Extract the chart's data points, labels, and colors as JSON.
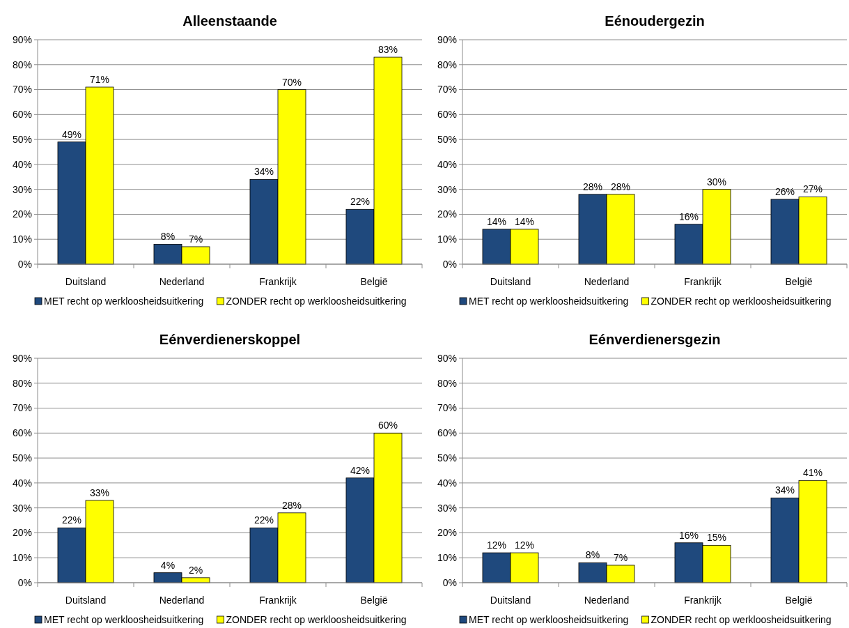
{
  "chart_data": [
    {
      "type": "bar",
      "title": "Alleenstaande",
      "categories": [
        "Duitsland",
        "Nederland",
        "Frankrijk",
        "België"
      ],
      "series": [
        {
          "name": "MET recht op werkloosheidsuitkering",
          "color": "#1f497d",
          "values": [
            49,
            8,
            34,
            22
          ],
          "value_labels": [
            "49%",
            "8%",
            "34%",
            "22%"
          ]
        },
        {
          "name": "ZONDER recht op werkloosheidsuitkering",
          "color": "#ffff00",
          "values": [
            71,
            7,
            70,
            83
          ],
          "value_labels": [
            "71%",
            "7%",
            "70%",
            "83%"
          ]
        }
      ],
      "ylim": [
        0,
        90
      ],
      "yticks": [
        {
          "value": 0,
          "label": "0%"
        },
        {
          "value": 10,
          "label": "10%"
        },
        {
          "value": 20,
          "label": "20%"
        },
        {
          "value": 30,
          "label": "30%"
        },
        {
          "value": 40,
          "label": "40%"
        },
        {
          "value": 50,
          "label": "50%"
        },
        {
          "value": 60,
          "label": "60%"
        },
        {
          "value": 70,
          "label": "70%"
        },
        {
          "value": 80,
          "label": "80%"
        },
        {
          "value": 90,
          "label": "90%"
        }
      ],
      "grid": "y",
      "legend": "bottom"
    },
    {
      "type": "bar",
      "title": "Eénoudergezin",
      "categories": [
        "Duitsland",
        "Nederland",
        "Frankrijk",
        "België"
      ],
      "series": [
        {
          "name": "MET recht op werkloosheidsuitkering",
          "color": "#1f497d",
          "values": [
            14,
            28,
            16,
            26
          ],
          "value_labels": [
            "14%",
            "28%",
            "16%",
            "26%"
          ]
        },
        {
          "name": "ZONDER recht op werkloosheidsuitkering",
          "color": "#ffff00",
          "values": [
            14,
            28,
            30,
            27
          ],
          "value_labels": [
            "14%",
            "28%",
            "30%",
            "27%"
          ]
        }
      ],
      "ylim": [
        0,
        90
      ],
      "yticks": [
        {
          "value": 0,
          "label": "0%"
        },
        {
          "value": 10,
          "label": "10%"
        },
        {
          "value": 20,
          "label": "20%"
        },
        {
          "value": 30,
          "label": "30%"
        },
        {
          "value": 40,
          "label": "40%"
        },
        {
          "value": 50,
          "label": "50%"
        },
        {
          "value": 60,
          "label": "60%"
        },
        {
          "value": 70,
          "label": "70%"
        },
        {
          "value": 80,
          "label": "80%"
        },
        {
          "value": 90,
          "label": "90%"
        }
      ],
      "grid": "y",
      "legend": "bottom"
    },
    {
      "type": "bar",
      "title": "Eénverdienerskoppel",
      "categories": [
        "Duitsland",
        "Nederland",
        "Frankrijk",
        "België"
      ],
      "series": [
        {
          "name": "MET recht op werkloosheidsuitkering",
          "color": "#1f497d",
          "values": [
            22,
            4,
            22,
            42
          ],
          "value_labels": [
            "22%",
            "4%",
            "22%",
            "42%"
          ]
        },
        {
          "name": "ZONDER recht op werkloosheidsuitkering",
          "color": "#ffff00",
          "values": [
            33,
            2,
            28,
            60
          ],
          "value_labels": [
            "33%",
            "2%",
            "28%",
            "60%"
          ]
        }
      ],
      "ylim": [
        0,
        90
      ],
      "yticks": [
        {
          "value": 0,
          "label": "0%"
        },
        {
          "value": 10,
          "label": "10%"
        },
        {
          "value": 20,
          "label": "20%"
        },
        {
          "value": 30,
          "label": "30%"
        },
        {
          "value": 40,
          "label": "40%"
        },
        {
          "value": 50,
          "label": "50%"
        },
        {
          "value": 60,
          "label": "60%"
        },
        {
          "value": 70,
          "label": "70%"
        },
        {
          "value": 80,
          "label": "80%"
        },
        {
          "value": 90,
          "label": "90%"
        }
      ],
      "grid": "y",
      "legend": "bottom"
    },
    {
      "type": "bar",
      "title": "Eénverdienersgezin",
      "categories": [
        "Duitsland",
        "Nederland",
        "Frankrijk",
        "België"
      ],
      "series": [
        {
          "name": "MET recht op werkloosheidsuitkering",
          "color": "#1f497d",
          "values": [
            12,
            8,
            16,
            34
          ],
          "value_labels": [
            "12%",
            "8%",
            "16%",
            "34%"
          ]
        },
        {
          "name": "ZONDER recht op werkloosheidsuitkering",
          "color": "#ffff00",
          "values": [
            12,
            7,
            15,
            41
          ],
          "value_labels": [
            "12%",
            "7%",
            "15%",
            "41%"
          ]
        }
      ],
      "ylim": [
        0,
        90
      ],
      "yticks": [
        {
          "value": 0,
          "label": "0%"
        },
        {
          "value": 10,
          "label": "10%"
        },
        {
          "value": 20,
          "label": "20%"
        },
        {
          "value": 30,
          "label": "30%"
        },
        {
          "value": 40,
          "label": "40%"
        },
        {
          "value": 50,
          "label": "50%"
        },
        {
          "value": 60,
          "label": "60%"
        },
        {
          "value": 70,
          "label": "70%"
        },
        {
          "value": 80,
          "label": "80%"
        },
        {
          "value": 90,
          "label": "90%"
        }
      ],
      "grid": "y",
      "legend": "bottom"
    }
  ]
}
